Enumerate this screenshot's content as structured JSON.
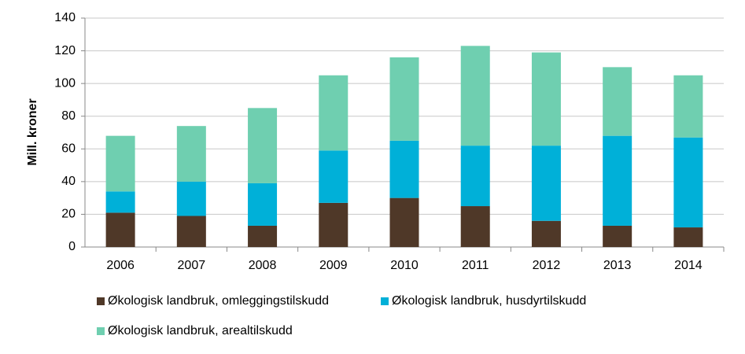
{
  "chart_data": {
    "type": "stacked_bar",
    "y_label": "Mill. kroner",
    "categories": [
      "2006",
      "2007",
      "2008",
      "2009",
      "2010",
      "2011",
      "2012",
      "2013",
      "2014"
    ],
    "series": [
      {
        "name": "Økologisk landbruk, omleggingstilskudd",
        "color": "#4f3828",
        "values": [
          21,
          19,
          13,
          27,
          30,
          25,
          16,
          13,
          12
        ]
      },
      {
        "name": "Økologisk landbruk, husdyrtilskudd",
        "color": "#00b0d8",
        "values": [
          13,
          21,
          26,
          32,
          35,
          37,
          46,
          55,
          55
        ]
      },
      {
        "name": "Økologisk landbruk, arealtilskudd",
        "color": "#6fcfb0",
        "values": [
          34,
          34,
          46,
          46,
          51,
          61,
          57,
          42,
          38
        ]
      }
    ],
    "ylim": [
      0,
      140
    ],
    "yticks": [
      0,
      20,
      40,
      60,
      80,
      100,
      120,
      140
    ],
    "grid": true
  }
}
